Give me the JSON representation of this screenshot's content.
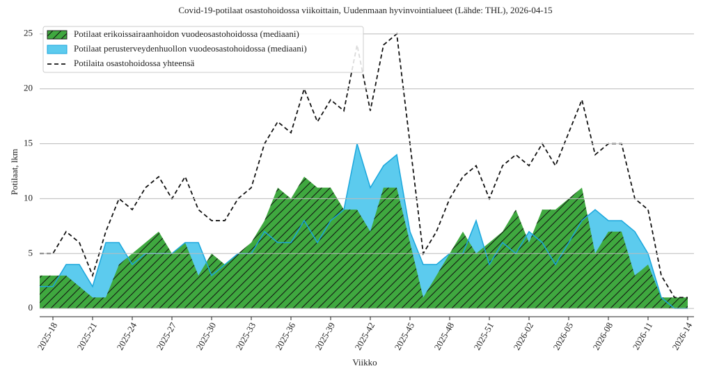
{
  "chart_data": {
    "type": "area",
    "title": "Covid-19-potilaat osastohoidossa viikoittain, Uudenmaan hyvinvointialueet (Lähde: THL), 2026-04-15",
    "xlabel": "Viikko",
    "ylabel": "Potilaat, lkm",
    "categories": [
      null,
      "2025-18",
      null,
      null,
      "2025-21",
      null,
      null,
      "2025-24",
      null,
      null,
      "2025-27",
      null,
      null,
      "2025-30",
      null,
      null,
      "2025-33",
      null,
      null,
      "2025-36",
      null,
      null,
      "2025-39",
      null,
      null,
      "2025-42",
      null,
      null,
      "2025-45",
      null,
      null,
      "2025-48",
      null,
      null,
      "2025-51",
      null,
      null,
      "2026-02",
      null,
      null,
      "2026-05",
      null,
      null,
      "2026-08",
      null,
      null,
      "2026-11",
      null,
      null,
      "2026-14"
    ],
    "series": [
      {
        "name": "Potilaat erikoissairaanhoidon vuodeosastohoidossa (mediaani)",
        "color": "#3fa83f",
        "hatch": "/",
        "values": [
          3,
          3,
          3,
          2,
          1,
          1,
          4,
          5,
          6,
          7,
          5,
          6,
          3,
          5,
          4,
          5,
          6,
          8,
          11,
          10,
          12,
          11,
          11,
          9,
          9,
          7,
          11,
          11,
          6,
          1,
          3,
          5,
          7,
          5,
          6,
          7,
          9,
          6,
          9,
          9,
          10,
          11,
          5,
          7,
          7,
          3,
          4,
          1,
          1,
          1
        ]
      },
      {
        "name": "Potilaat perusterveydenhuollon vuodeosastohoidossa (mediaani)",
        "color": "#5ccbee",
        "values": [
          2,
          2,
          4,
          4,
          2,
          6,
          6,
          4,
          5,
          5,
          5,
          6,
          6,
          3,
          4,
          5,
          5,
          7,
          6,
          6,
          8,
          6,
          8,
          9,
          15,
          11,
          13,
          14,
          7,
          4,
          4,
          5,
          5,
          8,
          4,
          6,
          5,
          7,
          6,
          4,
          6,
          8,
          9,
          8,
          8,
          7,
          5,
          1,
          0,
          0
        ]
      },
      {
        "name": "Potilaita osastohoidossa yhteensä",
        "color": "#111111",
        "style": "dashed",
        "values": [
          5,
          5,
          7,
          6,
          3,
          7,
          10,
          9,
          11,
          12,
          10,
          12,
          9,
          8,
          8,
          10,
          11,
          15,
          17,
          16,
          20,
          17,
          19,
          18,
          24,
          18,
          24,
          25,
          15,
          5,
          7,
          10,
          12,
          13,
          10,
          13,
          14,
          13,
          15,
          13,
          16,
          19,
          14,
          15,
          15,
          10,
          9,
          3,
          1,
          1
        ]
      }
    ],
    "ylim": [
      -0.75,
      26.25
    ],
    "yticks": [
      0,
      5,
      10,
      15,
      20,
      25
    ],
    "grid": true,
    "legend": "upper left"
  }
}
